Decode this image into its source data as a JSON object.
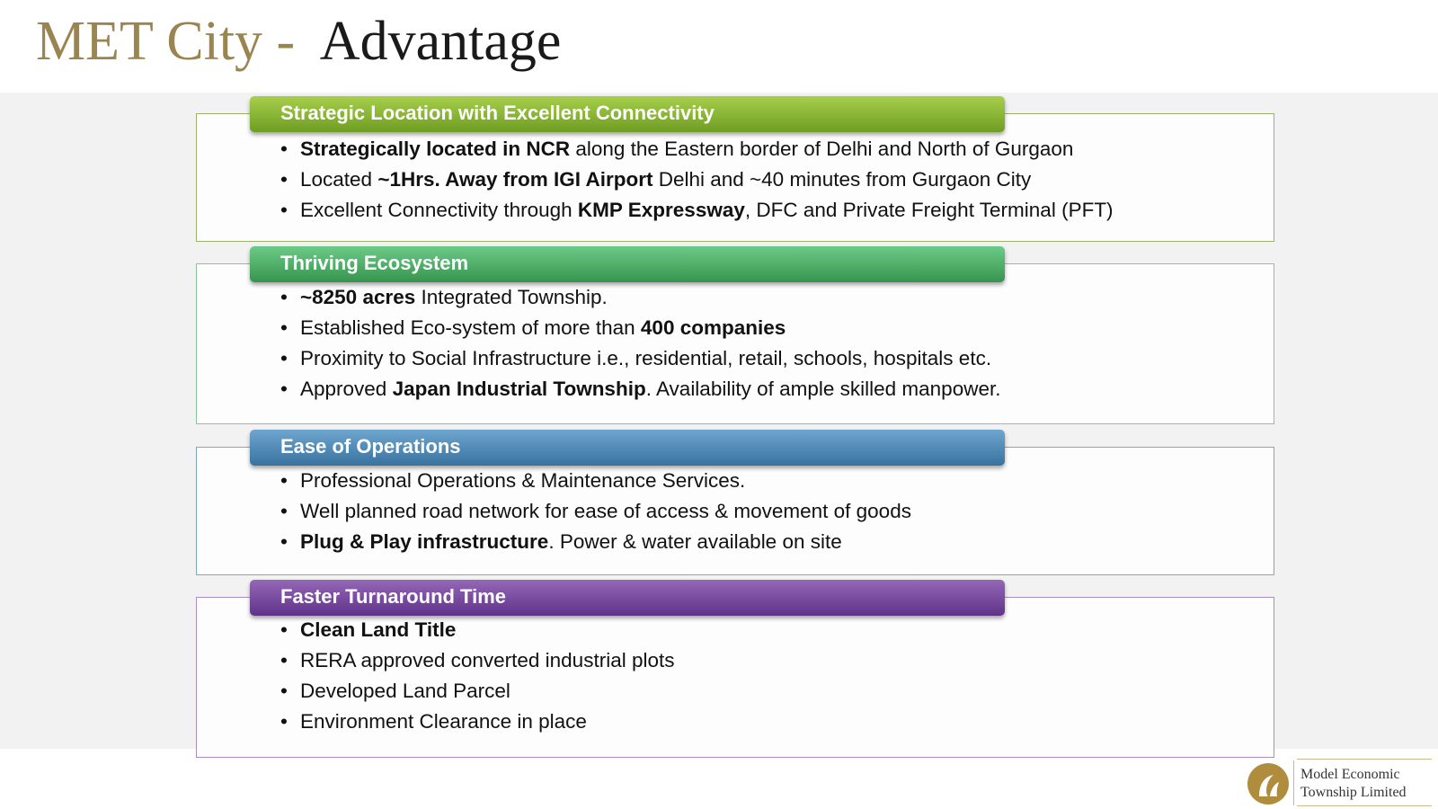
{
  "title": {
    "prefix": "MET City -",
    "main": "Advantage"
  },
  "sections": [
    {
      "heading": "Strategic Location with Excellent Connectivity",
      "color": "#8cb83a",
      "bullets": [
        [
          {
            "t": "Strategically located in NCR",
            "b": true
          },
          {
            "t": " along the Eastern border of Delhi and North of Gurgaon"
          }
        ],
        [
          {
            "t": "Located "
          },
          {
            "t": "~1Hrs. Away from IGI Airport",
            "b": true
          },
          {
            "t": " Delhi and ~40 minutes from Gurgaon City"
          }
        ],
        [
          {
            "t": "Excellent Connectivity through "
          },
          {
            "t": "KMP Expressway",
            "b": true
          },
          {
            "t": ", DFC and Private Freight Terminal (PFT)"
          }
        ]
      ]
    },
    {
      "heading": "Thriving Ecosystem",
      "color": "#4caf6a",
      "bullets": [
        [
          {
            "t": "~8250 acres",
            "b": true
          },
          {
            "t": " Integrated Township."
          }
        ],
        [
          {
            "t": "Established Eco-system of more than "
          },
          {
            "t": "400 companies",
            "b": true
          }
        ],
        [
          {
            "t": "Proximity to Social Infrastructure i.e., residential, retail, schools, hospitals etc."
          }
        ],
        [
          {
            "t": "Approved "
          },
          {
            "t": "Japan Industrial Township",
            "b": true
          },
          {
            "t": ". Availability of ample skilled manpower."
          }
        ]
      ]
    },
    {
      "heading": "Ease of Operations",
      "color": "#4a86b5",
      "bullets": [
        [
          {
            "t": "Professional Operations & Maintenance Services."
          }
        ],
        [
          {
            "t": "Well planned road network for ease of access & movement of goods"
          }
        ],
        [
          {
            "t": "Plug & Play infrastructure",
            "b": true
          },
          {
            "t": ". Power & water available on site"
          }
        ]
      ]
    },
    {
      "heading": "Faster Turnaround Time",
      "color": "#7a4aa0",
      "bullets": [
        [
          {
            "t": "Clean Land Title",
            "b": true
          }
        ],
        [
          {
            "t": "RERA approved converted industrial plots"
          }
        ],
        [
          {
            "t": "Developed Land Parcel"
          }
        ],
        [
          {
            "t": "Environment Clearance in place"
          }
        ]
      ]
    }
  ],
  "logo": {
    "icon": "company-emblem-icon",
    "line1": "Model Economic",
    "line2": "Township Limited",
    "color": "#b08d3c"
  }
}
